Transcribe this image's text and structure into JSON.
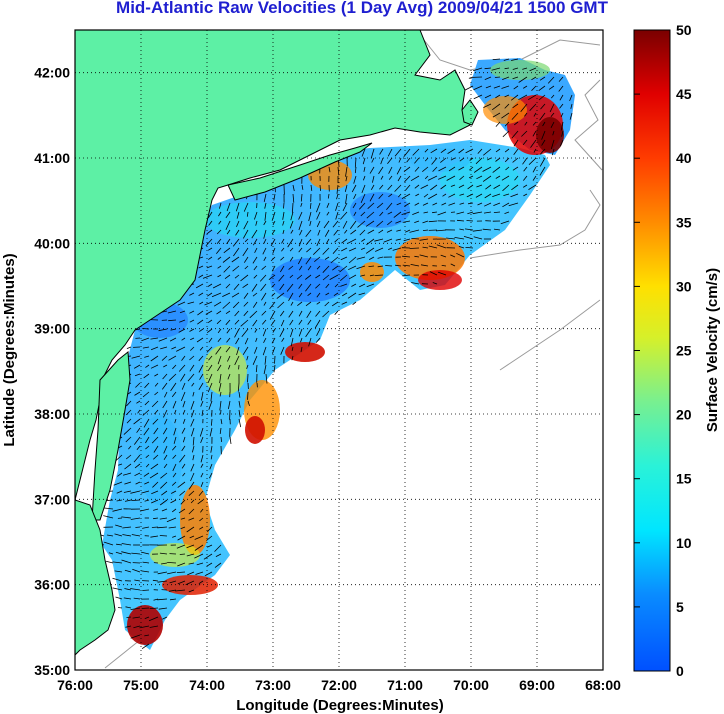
{
  "title": "Mid-Atlantic Raw Velocities (1 Day Avg) 2009/04/21 1500 GMT",
  "map": {
    "xlabel": "Longitude (Degrees:Minutes)",
    "ylabel": "Latitude (Degrees:Minutes)",
    "x_ticks": [
      "76:00",
      "75:00",
      "74:00",
      "73:00",
      "72:00",
      "71:00",
      "70:00",
      "69:00",
      "68:00"
    ],
    "y_ticks": [
      "42:00",
      "41:00",
      "40:00",
      "39:00",
      "38:00",
      "37:00",
      "36:00",
      "35:00"
    ],
    "lon_range": [
      -76.0,
      -68.0
    ],
    "lat_range": [
      35.0,
      42.5
    ],
    "land_color": "#5df0a5",
    "grid": true
  },
  "colorbar": {
    "label": "Surface Velocity (cm/s)",
    "min": 0,
    "max": 50,
    "ticks": [
      "50",
      "45",
      "40",
      "35",
      "30",
      "25",
      "20",
      "15",
      "10",
      "5",
      "0"
    ],
    "colormap": "jet"
  }
}
